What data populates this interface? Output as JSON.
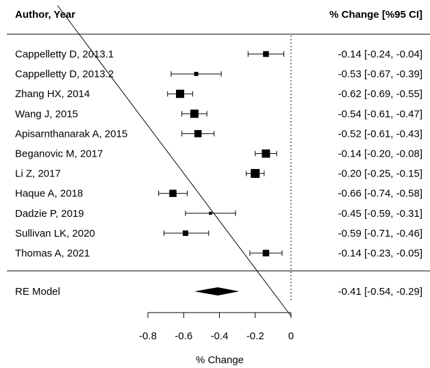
{
  "chart_data": {
    "type": "forest",
    "headers": {
      "study": "Author, Year",
      "estimate": "% Change [%95 CI]"
    },
    "xlabel": "% Change",
    "xlim": [
      -0.8,
      0
    ],
    "x_ticks": [
      "-0.8",
      "-0.6",
      "-0.4",
      "-0.2",
      "0"
    ],
    "reference_line": 0,
    "studies": [
      {
        "label": "Cappelletty D, 2013.1",
        "estimate": -0.14,
        "lower": -0.24,
        "upper": -0.04,
        "text": "-0.14 [-0.24, -0.04]",
        "weight": 0.55
      },
      {
        "label": "Cappelletty D, 2013.2",
        "estimate": -0.53,
        "lower": -0.67,
        "upper": -0.39,
        "text": "-0.53 [-0.67, -0.39]",
        "weight": 0.3
      },
      {
        "label": "Zhang HX, 2014",
        "estimate": -0.62,
        "lower": -0.69,
        "upper": -0.55,
        "text": "-0.62 [-0.69, -0.55]",
        "weight": 0.9
      },
      {
        "label": "Wang J, 2015",
        "estimate": -0.54,
        "lower": -0.61,
        "upper": -0.47,
        "text": "-0.54 [-0.61, -0.47]",
        "weight": 0.9
      },
      {
        "label": "Apisarnthanarak A, 2015",
        "estimate": -0.52,
        "lower": -0.61,
        "upper": -0.43,
        "text": "-0.52 [-0.61, -0.43]",
        "weight": 0.75
      },
      {
        "label": "Beganovic M, 2017",
        "estimate": -0.14,
        "lower": -0.2,
        "upper": -0.08,
        "text": "-0.14 [-0.20, -0.08]",
        "weight": 0.9
      },
      {
        "label": "Li Z, 2017",
        "estimate": -0.2,
        "lower": -0.25,
        "upper": -0.15,
        "text": "-0.20 [-0.25, -0.15]",
        "weight": 1.0
      },
      {
        "label": "Haque A, 2018",
        "estimate": -0.66,
        "lower": -0.74,
        "upper": -0.58,
        "text": "-0.66 [-0.74, -0.58]",
        "weight": 0.75
      },
      {
        "label": "Dadzie P, 2019",
        "estimate": -0.45,
        "lower": -0.59,
        "upper": -0.31,
        "text": "-0.45 [-0.59, -0.31]",
        "weight": 0.15
      },
      {
        "label": "Sullivan LK, 2020",
        "estimate": -0.59,
        "lower": -0.71,
        "upper": -0.46,
        "text": "-0.59 [-0.71, -0.46]",
        "weight": 0.5
      },
      {
        "label": "Thomas A, 2021",
        "estimate": -0.14,
        "lower": -0.23,
        "upper": -0.05,
        "text": "-0.14 [-0.23, -0.05]",
        "weight": 0.65
      }
    ],
    "summary": {
      "label": "RE Model",
      "estimate": -0.41,
      "lower": -0.54,
      "upper": -0.29,
      "text": "-0.41 [-0.54, -0.29]"
    }
  }
}
